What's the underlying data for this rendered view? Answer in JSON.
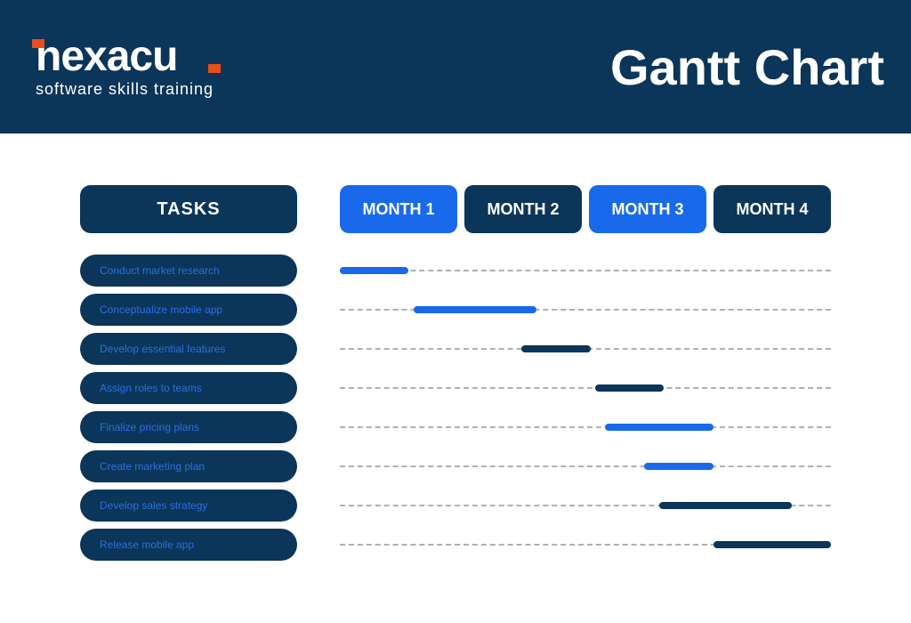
{
  "colors": {
    "header_bg": "#0b3559",
    "dark_navy": "#0b3559",
    "bright_blue": "#196aeb",
    "white": "#ffffff",
    "accent_orange": "#e94e1b",
    "dash": "#b0b0b0",
    "task_text": "#2b6fe0"
  },
  "logo": {
    "main": "nexacu",
    "sub": "software skills training"
  },
  "title": "Gantt Chart",
  "tasks_header": "TASKS",
  "months": [
    {
      "label": "MONTH 1",
      "highlight": true
    },
    {
      "label": "MONTH 2",
      "highlight": false
    },
    {
      "label": "MONTH 3",
      "highlight": true
    },
    {
      "label": "MONTH 4",
      "highlight": false
    }
  ],
  "tasks": [
    {
      "label": "Conduct market research",
      "start_pct": 0,
      "width_pct": 14,
      "color": "#196aeb"
    },
    {
      "label": "Conceptualize mobile app",
      "start_pct": 15,
      "width_pct": 25,
      "color": "#196aeb"
    },
    {
      "label": "Develop essential features",
      "start_pct": 37,
      "width_pct": 14,
      "color": "#0b3559"
    },
    {
      "label": "Assign roles to teams",
      "start_pct": 52,
      "width_pct": 14,
      "color": "#0b3559"
    },
    {
      "label": "Finalize pricing plans",
      "start_pct": 54,
      "width_pct": 22,
      "color": "#196aeb"
    },
    {
      "label": "Create marketing plan",
      "start_pct": 62,
      "width_pct": 14,
      "color": "#196aeb"
    },
    {
      "label": "Develop sales strategy",
      "start_pct": 65,
      "width_pct": 27,
      "color": "#0b3559"
    },
    {
      "label": "Release mobile app",
      "start_pct": 76,
      "width_pct": 24,
      "color": "#0b3559"
    }
  ]
}
